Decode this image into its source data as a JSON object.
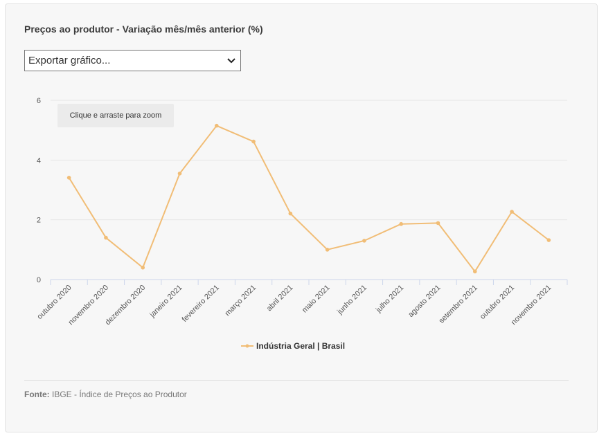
{
  "title": "Preços ao produtor - Variação mês/mês anterior (%)",
  "export_select": {
    "value": "Exportar gráfico..."
  },
  "zoom_hint": "Clique e arraste para zoom",
  "source": {
    "label": "Fonte:",
    "text": "IBGE - Índice de Preços ao Produtor"
  },
  "colors": {
    "series": "#f1bd76",
    "grid": "#e6e6e6",
    "axis": "#ccd6eb"
  },
  "chart_data": {
    "type": "line",
    "title": "Preços ao produtor - Variação mês/mês anterior (%)",
    "categories": [
      "outubro 2020",
      "novembro 2020",
      "dezembro 2020",
      "janeiro 2021",
      "fevereiro 2021",
      "março 2021",
      "abril 2021",
      "maio 2021",
      "junho 2021",
      "julho 2021",
      "agosto 2021",
      "setembro 2021",
      "outubro 2021",
      "novembro 2021"
    ],
    "series": [
      {
        "name": "Indústria Geral | Brasil",
        "values": [
          3.41,
          1.4,
          0.4,
          3.55,
          5.15,
          4.62,
          2.21,
          1.0,
          1.3,
          1.86,
          1.89,
          0.27,
          2.27,
          1.32
        ]
      }
    ],
    "yticks": [
      0,
      2,
      4,
      6
    ],
    "ylim": [
      0,
      6
    ],
    "grid": true,
    "legend": "bottom-center"
  }
}
